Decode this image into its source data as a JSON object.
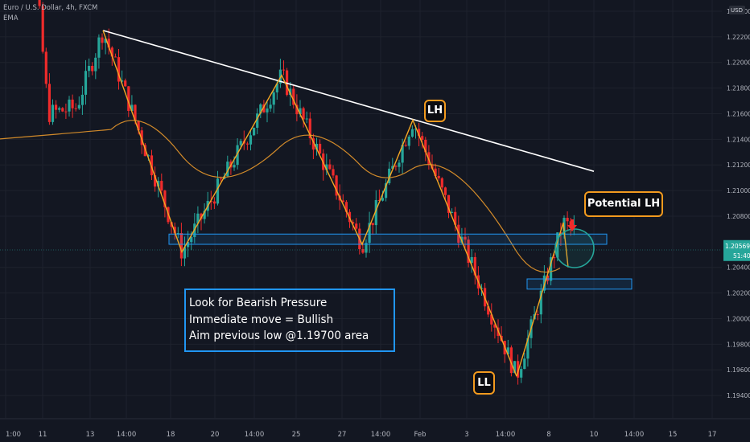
{
  "header": {
    "title": "Euro / U.S. Dollar, 4h, FXCM",
    "indicator": "EMA"
  },
  "price_axis": {
    "currency_badge": "USD",
    "ticks": [
      "1.22400",
      "1.22200",
      "1.22000",
      "1.21800",
      "1.21600",
      "1.21400",
      "1.21200",
      "1.21000",
      "1.20800",
      "1.20569",
      "1.20400",
      "1.20200",
      "1.20000",
      "1.19800",
      "1.19600",
      "1.19400"
    ],
    "current_price": "1.20569",
    "countdown": "51:40"
  },
  "time_axis": {
    "ticks": [
      "1:00",
      "11",
      "13",
      "14:00",
      "18",
      "20",
      "14:00",
      "25",
      "27",
      "14:00",
      "Feb",
      "3",
      "14:00",
      "8",
      "10",
      "14:00",
      "15",
      "17"
    ]
  },
  "annotations": {
    "lh": "LH",
    "potential_lh": "Potential LH",
    "ll": "LL",
    "note_lines": [
      "Look for Bearish Pressure",
      "Immediate move = Bullish",
      "Aim previous low @1.19700 area"
    ]
  },
  "colors": {
    "background": "#131722",
    "bull_candle": "#26a69a",
    "bear_candle": "#ef2b2b",
    "ema": "#d18a2a",
    "zigzag": "#f5a623",
    "trendline": "#ffffff",
    "zone_border": "#2196f3",
    "label_border": "#f29a1e",
    "price_badge": "#26a69a"
  },
  "chart_data": {
    "type": "candlestick",
    "symbol": "Euro / U.S. Dollar",
    "timeframe": "4h",
    "source": "FXCM",
    "ylim": [
      1.193,
      1.2245
    ],
    "current_price": 1.20569,
    "swing_points": [
      {
        "date": "Jan 13",
        "price": 1.2225
      },
      {
        "date": "Jan 18",
        "price": 1.2052
      },
      {
        "date": "Jan 24",
        "price": 1.219
      },
      {
        "date": "Jan 28",
        "price": 1.2058
      },
      {
        "date": "Feb 1",
        "price": 1.2155,
        "label": "LH"
      },
      {
        "date": "Feb 4",
        "price": 1.1955,
        "label": "LL"
      },
      {
        "date": "Feb 8",
        "price": 1.2075
      }
    ],
    "trendline": [
      {
        "date": "Jan 13",
        "price": 1.2225
      },
      {
        "date": "Feb 10",
        "price": 1.2115
      }
    ],
    "support_zone": [
      1.2058,
      1.2066
    ],
    "lower_zone": [
      1.2023,
      1.2031
    ]
  }
}
